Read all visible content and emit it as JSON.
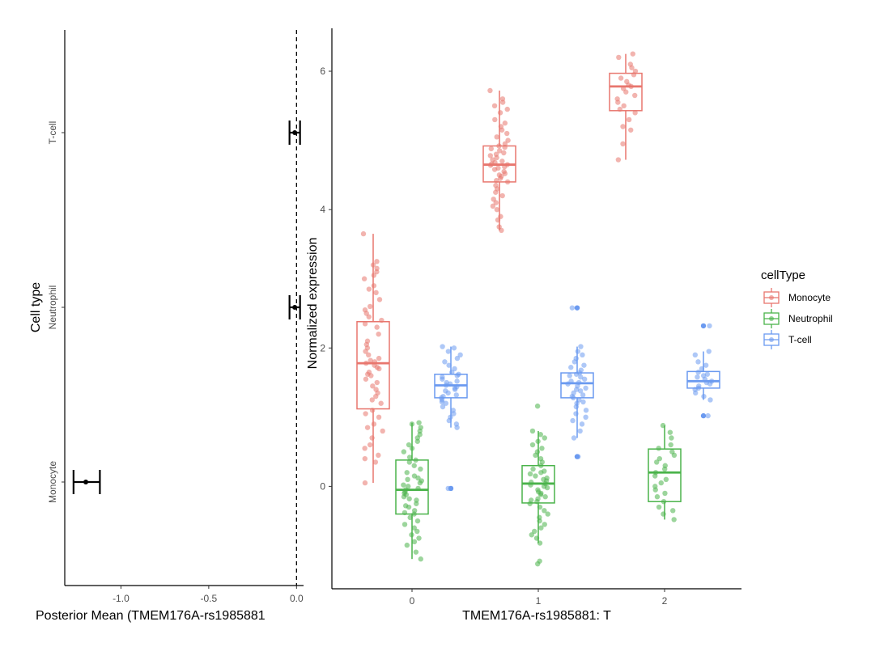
{
  "chart_data": [
    {
      "type": "forest",
      "title": "",
      "xlabel": "Posterior Mean (TMEM176A-rs1985881",
      "ylabel": "Cell type",
      "xlim": [
        -1.32,
        0.04
      ],
      "x_ticks": [
        -1.0,
        -0.5,
        0.0
      ],
      "x_tick_labels": [
        "-1.0",
        "-0.5",
        "0.0"
      ],
      "categories": [
        "Monocyte",
        "Neutrophil",
        "T-cell"
      ],
      "points": [
        {
          "category": "Monocyte",
          "mean": -1.2,
          "lower": -1.27,
          "upper": -1.12
        },
        {
          "category": "Neutrophil",
          "mean": -0.01,
          "lower": -0.04,
          "upper": 0.02
        },
        {
          "category": "T-cell",
          "mean": -0.01,
          "lower": -0.04,
          "upper": 0.02
        }
      ],
      "reference_line": 0.0
    },
    {
      "type": "boxplot",
      "title": "",
      "xlabel": "TMEM176A-rs1985881: T",
      "ylabel": "Normalized expression",
      "categories": [
        "0",
        "1",
        "2"
      ],
      "ylim": [
        -1.48,
        6.62
      ],
      "y_ticks": [
        0,
        2,
        4,
        6
      ],
      "y_tick_labels": [
        "0",
        "2",
        "4",
        "6"
      ],
      "legend": {
        "title": "cellType",
        "position": "right",
        "entries": [
          "Monocyte",
          "Neutrophil",
          "T-cell"
        ]
      },
      "colors": {
        "Monocyte": "#e8766e",
        "Neutrophil": "#4ab34a",
        "T-cell": "#6b9af0"
      },
      "series": [
        {
          "name": "Monocyte",
          "boxes": [
            {
              "genotype": "0",
              "min": 0.05,
              "q1": 1.12,
              "median": 1.78,
              "q3": 2.38,
              "max": 3.65
            },
            {
              "genotype": "1",
              "min": 3.7,
              "q1": 4.4,
              "median": 4.65,
              "q3": 4.92,
              "max": 5.72
            },
            {
              "genotype": "2",
              "min": 4.72,
              "q1": 5.43,
              "median": 5.78,
              "q3": 5.97,
              "max": 6.25
            }
          ],
          "points": {
            "0": [
              0.05,
              0.35,
              0.4,
              0.45,
              0.55,
              0.6,
              0.7,
              0.8,
              0.85,
              0.9,
              1.0,
              1.05,
              1.1,
              1.2,
              1.25,
              1.3,
              1.35,
              1.4,
              1.45,
              1.5,
              1.55,
              1.6,
              1.62,
              1.65,
              1.7,
              1.72,
              1.75,
              1.78,
              1.8,
              1.82,
              1.85,
              1.9,
              1.95,
              2.0,
              2.05,
              2.1,
              2.2,
              2.3,
              2.35,
              2.4,
              2.45,
              2.5,
              2.55,
              2.6,
              2.7,
              2.8,
              2.85,
              2.9,
              3.0,
              3.05,
              3.1,
              3.15,
              3.2,
              3.25,
              3.65
            ],
            "1": [
              3.7,
              3.75,
              3.85,
              3.9,
              4.0,
              4.05,
              4.1,
              4.15,
              4.2,
              4.25,
              4.3,
              4.35,
              4.4,
              4.42,
              4.45,
              4.48,
              4.5,
              4.52,
              4.55,
              4.58,
              4.6,
              4.62,
              4.64,
              4.65,
              4.66,
              4.68,
              4.7,
              4.72,
              4.75,
              4.78,
              4.8,
              4.82,
              4.85,
              4.88,
              4.9,
              4.92,
              4.95,
              5.0,
              5.05,
              5.1,
              5.15,
              5.2,
              5.25,
              5.3,
              5.4,
              5.45,
              5.5,
              5.55,
              5.6,
              5.72
            ],
            "2": [
              4.72,
              4.95,
              5.15,
              5.2,
              5.3,
              5.4,
              5.45,
              5.5,
              5.55,
              5.6,
              5.65,
              5.7,
              5.75,
              5.78,
              5.8,
              5.85,
              5.9,
              5.95,
              6.0,
              6.05,
              6.1,
              6.2,
              6.25
            ]
          }
        },
        {
          "name": "Neutrophil",
          "boxes": [
            {
              "genotype": "0",
              "min": -1.05,
              "q1": -0.4,
              "median": -0.05,
              "q3": 0.38,
              "max": 0.92
            },
            {
              "genotype": "1",
              "min": -0.82,
              "q1": -0.24,
              "median": 0.04,
              "q3": 0.3,
              "max": 0.8
            },
            {
              "genotype": "2",
              "min": -0.48,
              "q1": -0.22,
              "median": 0.2,
              "q3": 0.54,
              "max": 0.88
            }
          ],
          "points": {
            "0": [
              -1.05,
              -0.95,
              -0.85,
              -0.8,
              -0.75,
              -0.7,
              -0.65,
              -0.6,
              -0.55,
              -0.5,
              -0.45,
              -0.4,
              -0.38,
              -0.35,
              -0.3,
              -0.28,
              -0.25,
              -0.2,
              -0.18,
              -0.15,
              -0.12,
              -0.1,
              -0.08,
              -0.05,
              -0.03,
              0.0,
              0.02,
              0.05,
              0.08,
              0.1,
              0.12,
              0.15,
              0.2,
              0.25,
              0.3,
              0.35,
              0.38,
              0.42,
              0.5,
              0.55,
              0.6,
              0.65,
              0.7,
              0.75,
              0.8,
              0.85,
              0.9,
              0.92
            ],
            "1": [
              -1.12,
              -1.08,
              -0.82,
              -0.75,
              -0.7,
              -0.65,
              -0.6,
              -0.55,
              -0.5,
              -0.45,
              -0.4,
              -0.35,
              -0.3,
              -0.25,
              -0.22,
              -0.2,
              -0.18,
              -0.15,
              -0.12,
              -0.1,
              -0.08,
              -0.05,
              -0.02,
              0.0,
              0.02,
              0.04,
              0.06,
              0.08,
              0.1,
              0.12,
              0.15,
              0.18,
              0.2,
              0.22,
              0.25,
              0.3,
              0.35,
              0.4,
              0.45,
              0.5,
              0.55,
              0.6,
              0.65,
              0.7,
              0.75,
              0.8,
              1.16
            ],
            "2": [
              -0.48,
              -0.4,
              -0.35,
              -0.3,
              -0.22,
              -0.15,
              -0.1,
              -0.05,
              0.0,
              0.05,
              0.1,
              0.15,
              0.2,
              0.25,
              0.3,
              0.35,
              0.4,
              0.45,
              0.5,
              0.55,
              0.6,
              0.7,
              0.78,
              0.88
            ]
          }
        },
        {
          "name": "T-cell",
          "boxes": [
            {
              "genotype": "0",
              "min": 0.85,
              "q1": 1.28,
              "median": 1.46,
              "q3": 1.62,
              "max": 2.02
            },
            {
              "genotype": "1",
              "min": 0.7,
              "q1": 1.28,
              "median": 1.49,
              "q3": 1.64,
              "max": 2.02
            },
            {
              "genotype": "2",
              "min": 1.25,
              "q1": 1.42,
              "median": 1.52,
              "q3": 1.66,
              "max": 1.95
            }
          ],
          "outliers": {
            "0": [
              -0.03
            ],
            "1": [
              0.43,
              2.58
            ],
            "2": [
              1.02,
              2.32
            ]
          },
          "points": {
            "0": [
              0.85,
              0.9,
              0.95,
              1.0,
              1.05,
              1.1,
              1.15,
              1.2,
              1.22,
              1.25,
              1.28,
              1.3,
              1.32,
              1.35,
              1.38,
              1.4,
              1.42,
              1.44,
              1.46,
              1.48,
              1.5,
              1.52,
              1.55,
              1.58,
              1.6,
              1.62,
              1.65,
              1.7,
              1.75,
              1.8,
              1.85,
              1.9,
              1.95,
              2.0,
              2.02
            ],
            "1": [
              0.7,
              0.8,
              0.9,
              0.95,
              1.0,
              1.05,
              1.1,
              1.15,
              1.2,
              1.22,
              1.25,
              1.28,
              1.3,
              1.32,
              1.35,
              1.38,
              1.4,
              1.42,
              1.45,
              1.48,
              1.5,
              1.52,
              1.55,
              1.58,
              1.6,
              1.62,
              1.64,
              1.68,
              1.72,
              1.75,
              1.8,
              1.85,
              1.9,
              1.95,
              2.02
            ],
            "2": [
              1.25,
              1.3,
              1.35,
              1.4,
              1.42,
              1.45,
              1.48,
              1.5,
              1.52,
              1.55,
              1.58,
              1.6,
              1.62,
              1.65,
              1.7,
              1.75,
              1.8,
              1.9,
              1.95
            ]
          }
        }
      ]
    }
  ]
}
